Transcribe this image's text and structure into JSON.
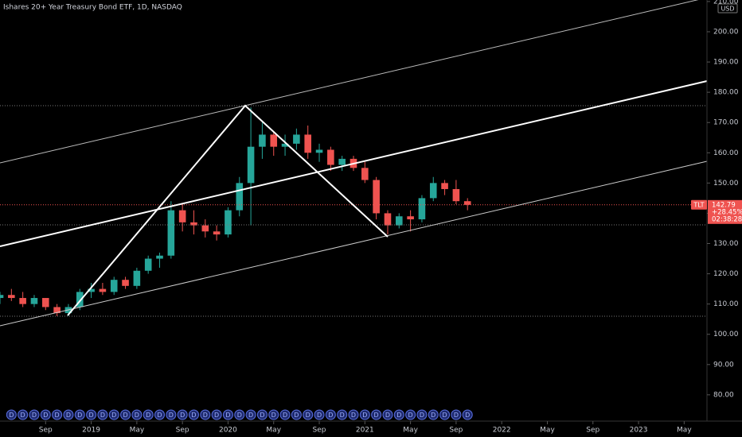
{
  "chart_data": {
    "type": "candlestick",
    "title": "Ishares 20+ Year Treasury Bond ETF, 1D, NASDAQ",
    "currency": "USD",
    "symbol": "TLT",
    "last_price": 142.79,
    "change": {
      "value": 28.45,
      "label": "+28.45%"
    },
    "countdown": "02:38:28",
    "dividend_marker": "D",
    "x": [
      "2018-05",
      "2018-06",
      "2018-07",
      "2018-08",
      "2018-09",
      "2018-10",
      "2018-11",
      "2018-12",
      "2019-01",
      "2019-02",
      "2019-03",
      "2019-04",
      "2019-05",
      "2019-06",
      "2019-07",
      "2019-08",
      "2019-09",
      "2019-10",
      "2019-11",
      "2019-12",
      "2020-01",
      "2020-02",
      "2020-03",
      "2020-04",
      "2020-05",
      "2020-06",
      "2020-07",
      "2020-08",
      "2020-09",
      "2020-10",
      "2020-11",
      "2020-12",
      "2021-01",
      "2021-02",
      "2021-03",
      "2021-04",
      "2021-05",
      "2021-06",
      "2021-07",
      "2021-08",
      "2021-09",
      "2021-10"
    ],
    "open": [
      112,
      113,
      112,
      110,
      112,
      109,
      107,
      109,
      114,
      115,
      114,
      118,
      116,
      121,
      125,
      126,
      141,
      137,
      136,
      134,
      133,
      141,
      150,
      162,
      166,
      162,
      163,
      166,
      160,
      161,
      156,
      158,
      155,
      151,
      140,
      136,
      139,
      138,
      145,
      150,
      148,
      144
    ],
    "high": [
      114,
      115,
      114,
      113,
      112,
      110,
      110,
      115,
      117,
      117,
      119,
      119,
      122,
      126,
      127,
      144,
      143,
      141,
      138,
      136,
      142,
      152,
      175,
      170,
      167,
      166,
      168,
      169,
      163,
      162,
      159,
      159,
      157,
      152,
      141,
      140,
      141,
      146,
      152,
      151,
      151,
      145
    ],
    "low": [
      110,
      111,
      109,
      109,
      108,
      106,
      106,
      108,
      112,
      113,
      113,
      115,
      115,
      120,
      122,
      125,
      134,
      133,
      132,
      131,
      132,
      139,
      136,
      158,
      159,
      159,
      161,
      158,
      157,
      154,
      154,
      154,
      150,
      138,
      133,
      135,
      134,
      137,
      144,
      146,
      143,
      141
    ],
    "close": [
      113,
      112,
      110,
      112,
      109,
      107,
      109,
      114,
      115,
      114,
      118,
      116,
      121,
      125,
      126,
      141,
      137,
      136,
      134,
      133,
      141,
      150,
      162,
      166,
      162,
      163,
      166,
      160,
      161,
      156,
      158,
      155,
      151,
      140,
      136,
      139,
      138,
      145,
      150,
      148,
      144,
      142.79
    ],
    "up_color": "#26a69a",
    "down_color": "#ef5350",
    "xlim": [
      "2018-05",
      "2023-07"
    ],
    "xticks": [
      {
        "value": "2018-09",
        "label": "Sep"
      },
      {
        "value": "2019-01",
        "label": "2019"
      },
      {
        "value": "2019-05",
        "label": "May"
      },
      {
        "value": "2019-09",
        "label": "Sep"
      },
      {
        "value": "2020-01",
        "label": "2020"
      },
      {
        "value": "2020-05",
        "label": "May"
      },
      {
        "value": "2020-09",
        "label": "Sep"
      },
      {
        "value": "2021-01",
        "label": "2021"
      },
      {
        "value": "2021-05",
        "label": "May"
      },
      {
        "value": "2021-09",
        "label": "Sep"
      },
      {
        "value": "2022-01",
        "label": "2022"
      },
      {
        "value": "2022-05",
        "label": "May"
      },
      {
        "value": "2022-09",
        "label": "Sep"
      },
      {
        "value": "2023-01",
        "label": "2023"
      },
      {
        "value": "2023-05",
        "label": "May"
      }
    ],
    "ylim": [
      71.3,
      210.5
    ],
    "yticks": [
      {
        "value": 80,
        "label": "80.00"
      },
      {
        "value": 90,
        "label": "90.00"
      },
      {
        "value": 100,
        "label": "100.00"
      },
      {
        "value": 110,
        "label": "110.00"
      },
      {
        "value": 120,
        "label": "120.00"
      },
      {
        "value": 130,
        "label": "130.00"
      },
      {
        "value": 140,
        "label": "140.00"
      },
      {
        "value": 150,
        "label": "150.00"
      },
      {
        "value": 160,
        "label": "160.00"
      },
      {
        "value": 170,
        "label": "170.00"
      },
      {
        "value": 180,
        "label": "180.00"
      },
      {
        "value": 190,
        "label": "190.00"
      },
      {
        "value": 200,
        "label": "200.00"
      },
      {
        "value": 210,
        "label": "210.00"
      }
    ]
  }
}
